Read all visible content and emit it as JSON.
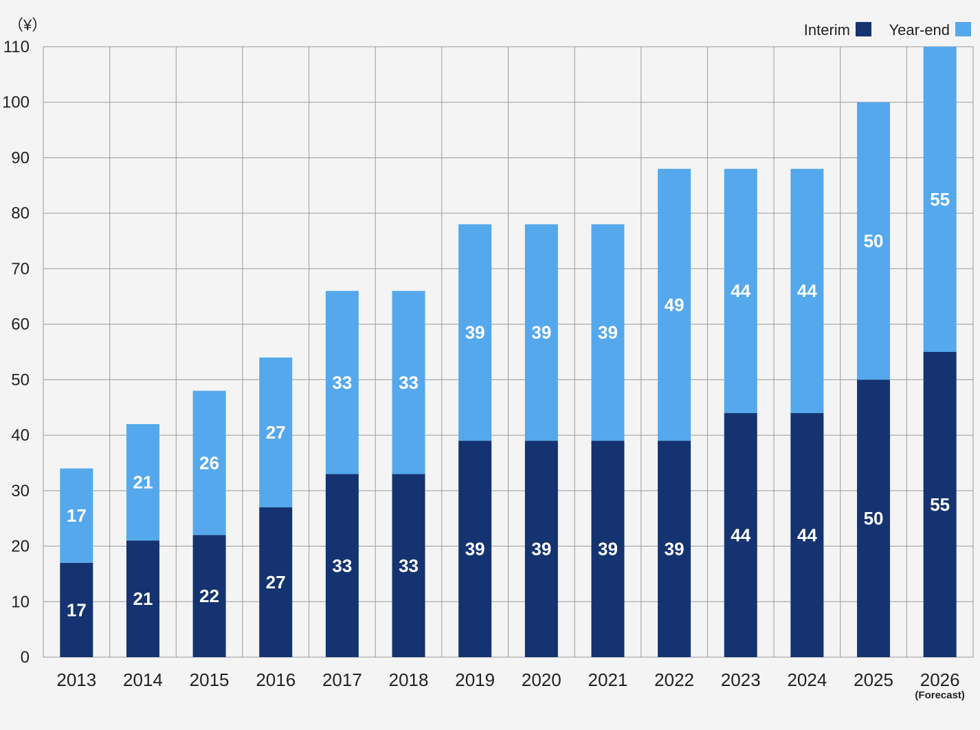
{
  "chart_data": {
    "type": "bar",
    "stacked": true,
    "unit_label": "（¥）",
    "categories": [
      "2013",
      "2014",
      "2015",
      "2016",
      "2017",
      "2018",
      "2019",
      "2020",
      "2021",
      "2022",
      "2023",
      "2024",
      "2025",
      "2026"
    ],
    "category_notes": {
      "2026": "(Forecast)"
    },
    "series": [
      {
        "name": "Interim",
        "color": "#143370",
        "values": [
          17,
          21,
          22,
          27,
          33,
          33,
          39,
          39,
          39,
          39,
          44,
          44,
          50,
          55
        ]
      },
      {
        "name": "Year-end",
        "color": "#55a8ec",
        "values": [
          17,
          21,
          26,
          27,
          33,
          33,
          39,
          39,
          39,
          49,
          44,
          44,
          50,
          55
        ]
      }
    ],
    "ylim": [
      0,
      110
    ],
    "yticks": [
      0,
      10,
      20,
      30,
      40,
      50,
      60,
      70,
      80,
      90,
      100,
      110
    ],
    "grid": true,
    "legend_position": "top-right"
  }
}
